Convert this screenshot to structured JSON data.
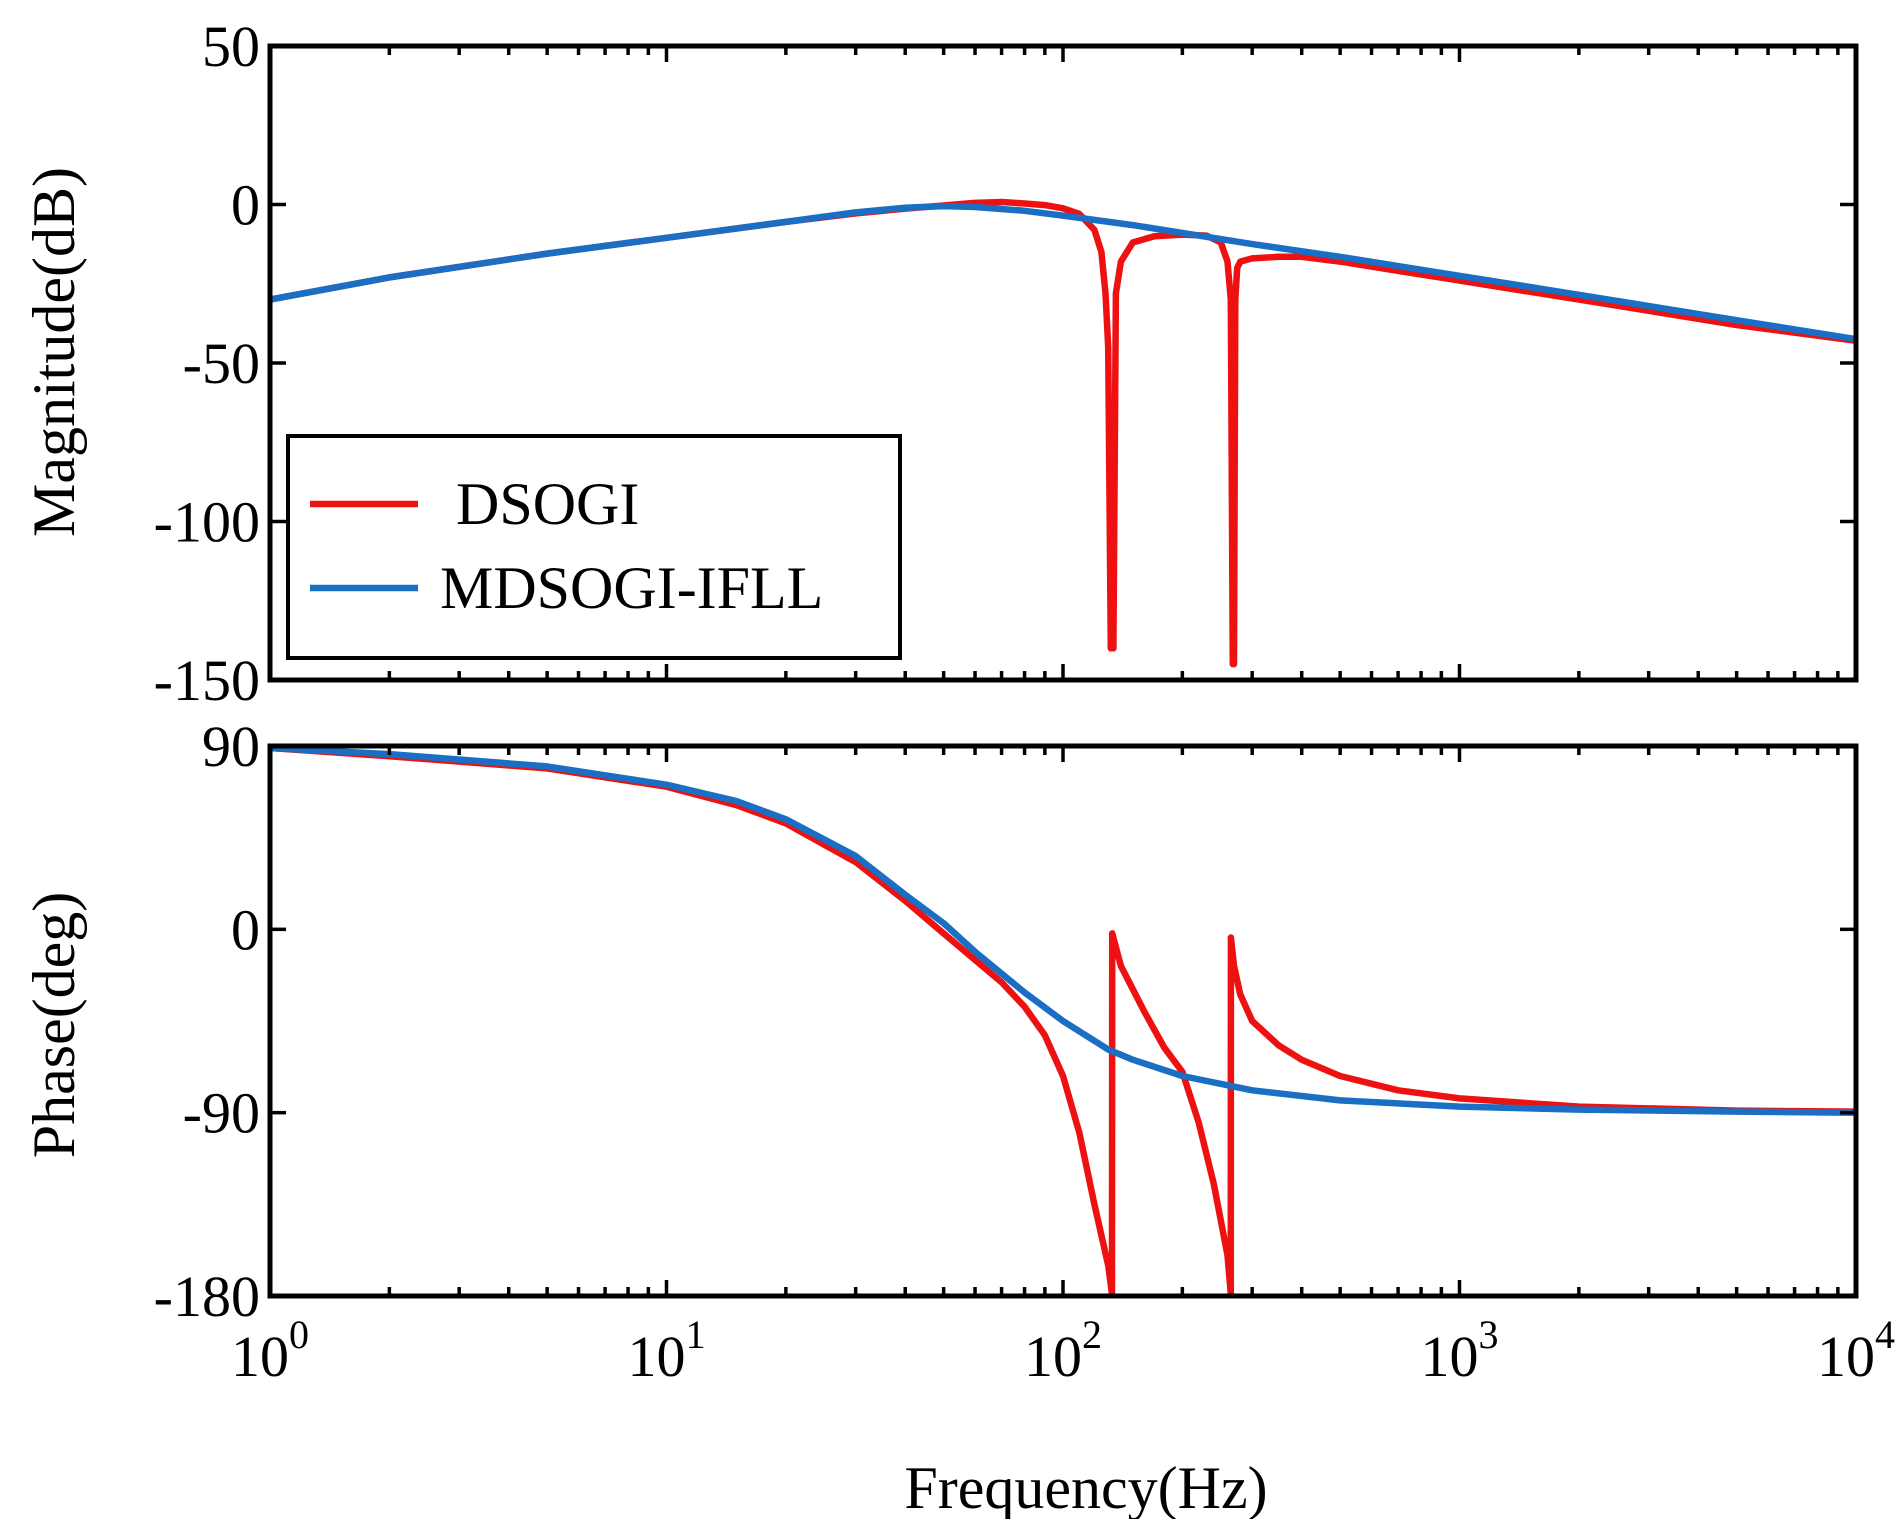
{
  "chart_data": [
    {
      "type": "line",
      "panel": "magnitude",
      "x_scale": "log",
      "xlim": [
        1,
        10000
      ],
      "ylim": [
        -150,
        50
      ],
      "ylabel": "Magnitude(dB)",
      "y_ticks": [
        50,
        0,
        -50,
        -100,
        -150
      ],
      "y_tick_labels": [
        "50",
        "0",
        "-50",
        "-100",
        "-150"
      ],
      "legend": {
        "placement": "bottom-left",
        "entries": [
          "DSOGI",
          "MDSOGI-IFLL"
        ]
      },
      "series": [
        {
          "name": "DSOGI",
          "color": "#ee1111",
          "x": [
            1,
            2,
            5,
            10,
            20,
            30,
            40,
            50,
            60,
            70,
            80,
            90,
            100,
            110,
            120,
            125,
            128,
            130,
            132,
            134,
            136,
            140,
            150,
            170,
            200,
            230,
            250,
            260,
            265,
            268,
            270,
            272,
            275,
            280,
            300,
            350,
            400,
            500,
            1000,
            2000,
            5000,
            10000
          ],
          "y": [
            -30,
            -23,
            -15.5,
            -10.5,
            -5.5,
            -2.8,
            -1.3,
            -0.3,
            0.5,
            0.8,
            0.3,
            -0.2,
            -1.2,
            -3,
            -8,
            -15,
            -28,
            -45,
            -140,
            -140,
            -28,
            -18,
            -12,
            -10,
            -9.5,
            -9.8,
            -12,
            -18,
            -30,
            -145,
            -145,
            -30,
            -20,
            -18,
            -17,
            -16.5,
            -16.5,
            -18,
            -24,
            -30,
            -38,
            -43
          ]
        },
        {
          "name": "MDSOGI-IFLL",
          "color": "#1a6fc4",
          "x": [
            1,
            2,
            5,
            10,
            20,
            30,
            40,
            50,
            60,
            80,
            100,
            150,
            200,
            300,
            500,
            1000,
            2000,
            5000,
            10000
          ],
          "y": [
            -30,
            -23,
            -15.5,
            -10.5,
            -5.5,
            -2.5,
            -1,
            -0.5,
            -0.8,
            -2,
            -3.5,
            -6.5,
            -9,
            -12.5,
            -16.5,
            -22.5,
            -28.5,
            -36.5,
            -42.5
          ]
        }
      ]
    },
    {
      "type": "line",
      "panel": "phase",
      "x_scale": "log",
      "xlim": [
        1,
        10000
      ],
      "ylim": [
        -180,
        90
      ],
      "xlabel": "Frequency(Hz)",
      "ylabel": "Phase(deg)",
      "y_ticks": [
        90,
        0,
        -90,
        -180
      ],
      "y_tick_labels": [
        "90",
        "0",
        "-90",
        "-180"
      ],
      "x_ticks": [
        1,
        10,
        100,
        1000,
        10000
      ],
      "x_tick_bases": [
        "10",
        "10",
        "10",
        "10",
        "10"
      ],
      "x_tick_exponents": [
        "0",
        "1",
        "2",
        "3",
        "4"
      ],
      "series": [
        {
          "name": "DSOGI",
          "color": "#ee1111",
          "x": [
            1,
            2,
            5,
            10,
            15,
            20,
            30,
            40,
            50,
            60,
            70,
            80,
            90,
            100,
            110,
            120,
            130,
            132.9,
            133.1,
            140,
            160,
            180,
            200,
            220,
            240,
            260,
            264.9,
            265.1,
            270,
            280,
            300,
            350,
            400,
            500,
            700,
            1000,
            2000,
            5000,
            10000
          ],
          "y": [
            89,
            85,
            79,
            70,
            61,
            52,
            33,
            14,
            -2,
            -15,
            -26,
            -38,
            -52,
            -72,
            -100,
            -135,
            -165,
            -179,
            -2,
            -18,
            -40,
            -58,
            -70,
            -95,
            -125,
            -160,
            -179,
            -4,
            -18,
            -32,
            -45,
            -57,
            -64,
            -72,
            -79,
            -83,
            -87,
            -89,
            -89.5
          ]
        },
        {
          "name": "MDSOGI-IFLL",
          "color": "#1a6fc4",
          "x": [
            1,
            2,
            5,
            10,
            15,
            20,
            30,
            40,
            50,
            60,
            80,
            100,
            130,
            150,
            200,
            300,
            500,
            1000,
            2000,
            5000,
            10000
          ],
          "y": [
            89,
            86,
            80,
            71,
            63,
            54,
            36,
            17,
            3,
            -11,
            -31,
            -45,
            -59,
            -64,
            -72,
            -79,
            -84,
            -87,
            -88.5,
            -89.5,
            -90
          ]
        }
      ]
    }
  ]
}
